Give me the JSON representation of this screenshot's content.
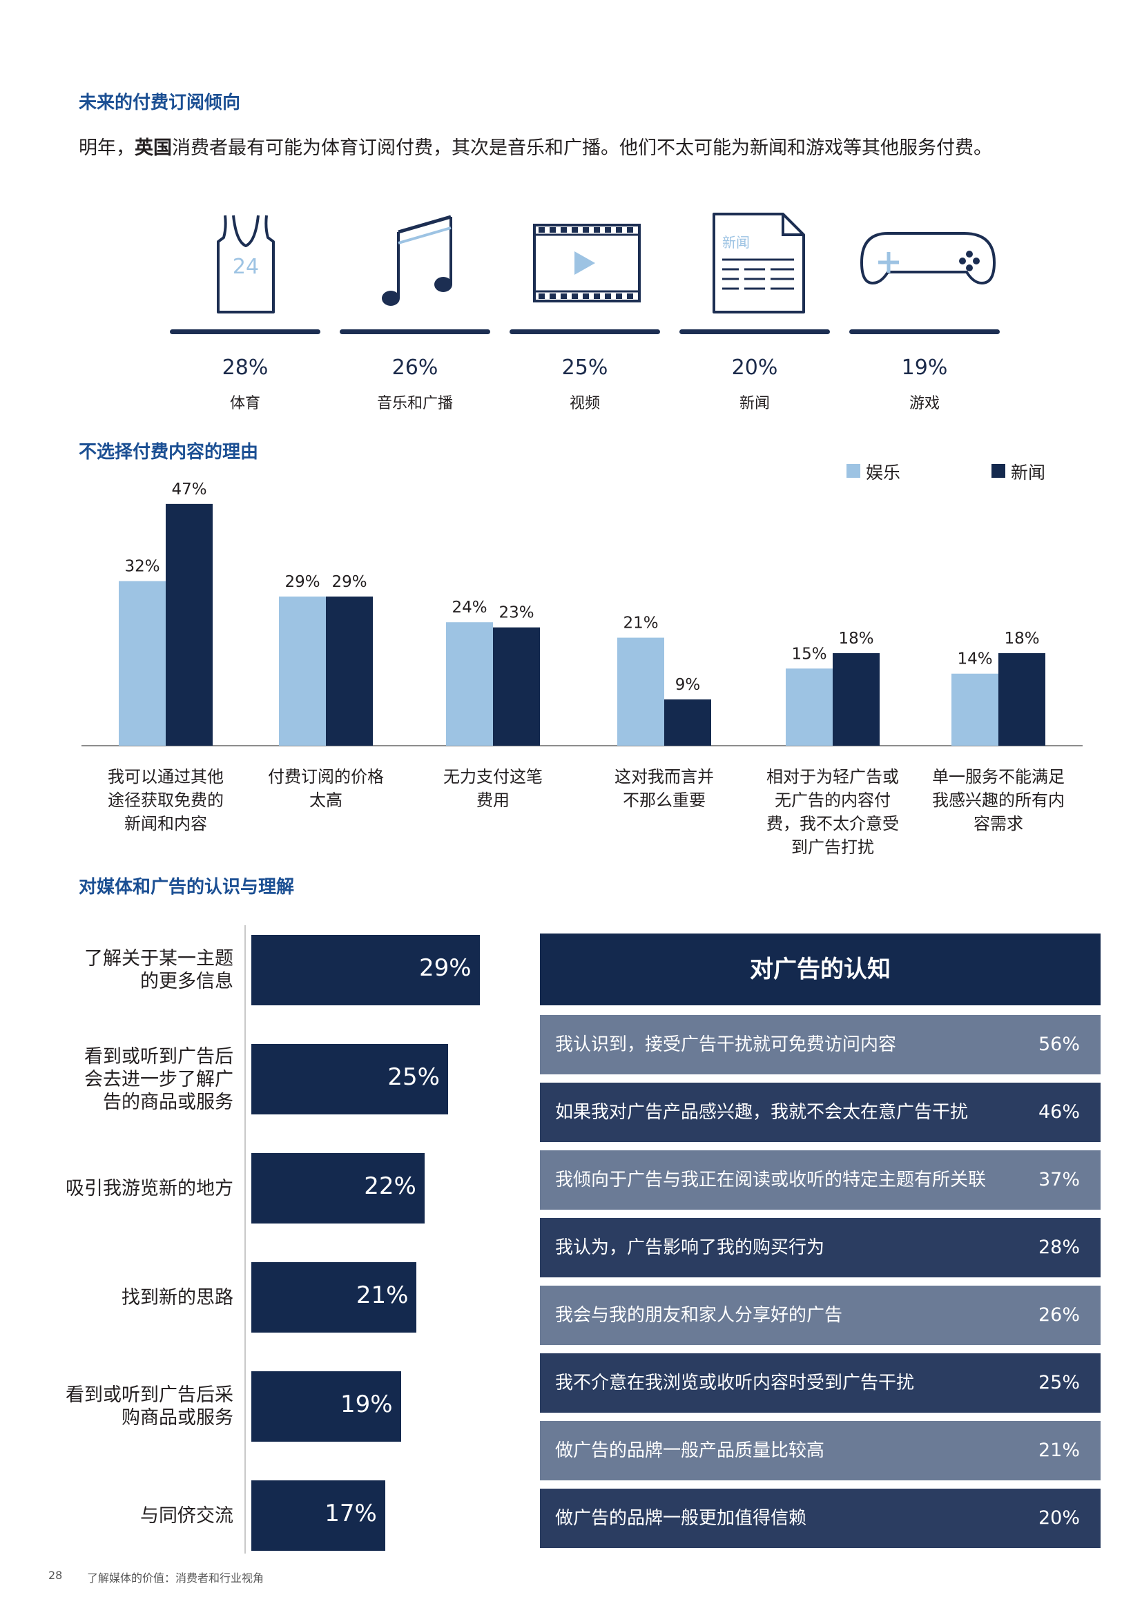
{
  "section1": {
    "title": "未来的付费订阅倾向",
    "intro_pre": "明年，",
    "intro_bold": "英国",
    "intro_post": "消费者最有可能为体育订阅付费，其次是音乐和广播。他们不太可能为新闻和游戏等其他服务付费。",
    "jersey_number": "24",
    "news_icon_text": "新闻"
  },
  "icon_chart": {
    "type": "bar",
    "categories": [
      "体育",
      "音乐和广播",
      "视频",
      "新闻",
      "游戏"
    ],
    "values": [
      28,
      26,
      25,
      20,
      19
    ],
    "value_labels": [
      "28%",
      "26%",
      "25%",
      "20%",
      "19%"
    ],
    "icons": [
      "basketball-jersey-icon",
      "music-note-icon",
      "video-film-icon",
      "newspaper-icon",
      "game-controller-icon"
    ],
    "accent_color": "#9dc3e3",
    "dark_color": "#1c2e52"
  },
  "section2": {
    "title": "不选择付费内容的理由"
  },
  "chart_data": [
    {
      "type": "bar",
      "title": "不选择付费内容的理由",
      "categories": [
        [
          "我可以通过其他",
          "途径获取免费的",
          "新闻和内容"
        ],
        [
          "付费订阅的价格",
          "太高"
        ],
        [
          "无力支付这笔",
          "费用"
        ],
        [
          "这对我而言并",
          "不那么重要"
        ],
        [
          "相对于为轻广告或",
          "无广告的内容付",
          "费，我不太介意受",
          "到广告打扰"
        ],
        [
          "单一服务不能满足",
          "我感兴趣的所有内",
          "容需求"
        ]
      ],
      "series": [
        {
          "name": "娱乐",
          "color": "#9dc3e3",
          "values": [
            32,
            29,
            24,
            21,
            15,
            14
          ],
          "labels": [
            "32%",
            "29%",
            "24%",
            "21%",
            "15%",
            "14%"
          ]
        },
        {
          "name": "新闻",
          "color": "#14294e",
          "values": [
            47,
            29,
            23,
            9,
            18,
            18
          ],
          "labels": [
            "47%",
            "29%",
            "23%",
            "9%",
            "18%",
            "18%"
          ]
        }
      ],
      "ylim": [
        0,
        50
      ],
      "legend": "top-right",
      "grid": false
    },
    {
      "type": "bar",
      "orientation": "horizontal",
      "title": "对媒体和广告的认识与理解",
      "categories": [
        [
          "了解关于某一主题",
          "的更多信息"
        ],
        [
          "看到或听到广告后",
          "会去进一步了解广",
          "告的商品或服务"
        ],
        [
          "吸引我游览新的地方"
        ],
        [
          "找到新的思路"
        ],
        [
          "看到或听到广告后采",
          "购商品或服务"
        ],
        [
          "与同侪交流"
        ]
      ],
      "values": [
        29,
        25,
        22,
        21,
        19,
        17
      ],
      "labels": [
        "29%",
        "25%",
        "22%",
        "21%",
        "19%",
        "17%"
      ],
      "xlim": [
        0,
        30
      ],
      "color": "#14294e"
    },
    {
      "type": "table",
      "title": "对广告的认知",
      "rows": [
        {
          "text": "我认识到，接受广告干扰就可免费访问内容",
          "value": 56,
          "label": "56%",
          "color": "#6b7b96"
        },
        {
          "text": "如果我对广告产品感兴趣，我就不会太在意广告干扰",
          "value": 46,
          "label": "46%",
          "color": "#2b3d61"
        },
        {
          "text": "我倾向于广告与我正在阅读或收听的特定主题有所关联",
          "value": 37,
          "label": "37%",
          "color": "#6b7b96"
        },
        {
          "text": "我认为，广告影响了我的购买行为",
          "value": 28,
          "label": "28%",
          "color": "#2b3d61"
        },
        {
          "text": "我会与我的朋友和家人分享好的广告",
          "value": 26,
          "label": "26%",
          "color": "#6b7b96"
        },
        {
          "text": "我不介意在我浏览或收听内容时受到广告干扰",
          "value": 25,
          "label": "25%",
          "color": "#2b3d61"
        },
        {
          "text": "做广告的品牌一般产品质量比较高",
          "value": 21,
          "label": "21%",
          "color": "#6b7b96"
        },
        {
          "text": "做广告的品牌一般更加值得信赖",
          "value": 20,
          "label": "20%",
          "color": "#2b3d61"
        }
      ]
    }
  ],
  "section3": {
    "title": "对媒体和广告的认识与理解"
  },
  "footer": {
    "page": "28",
    "text": "了解媒体的价值：消费者和行业视角"
  }
}
